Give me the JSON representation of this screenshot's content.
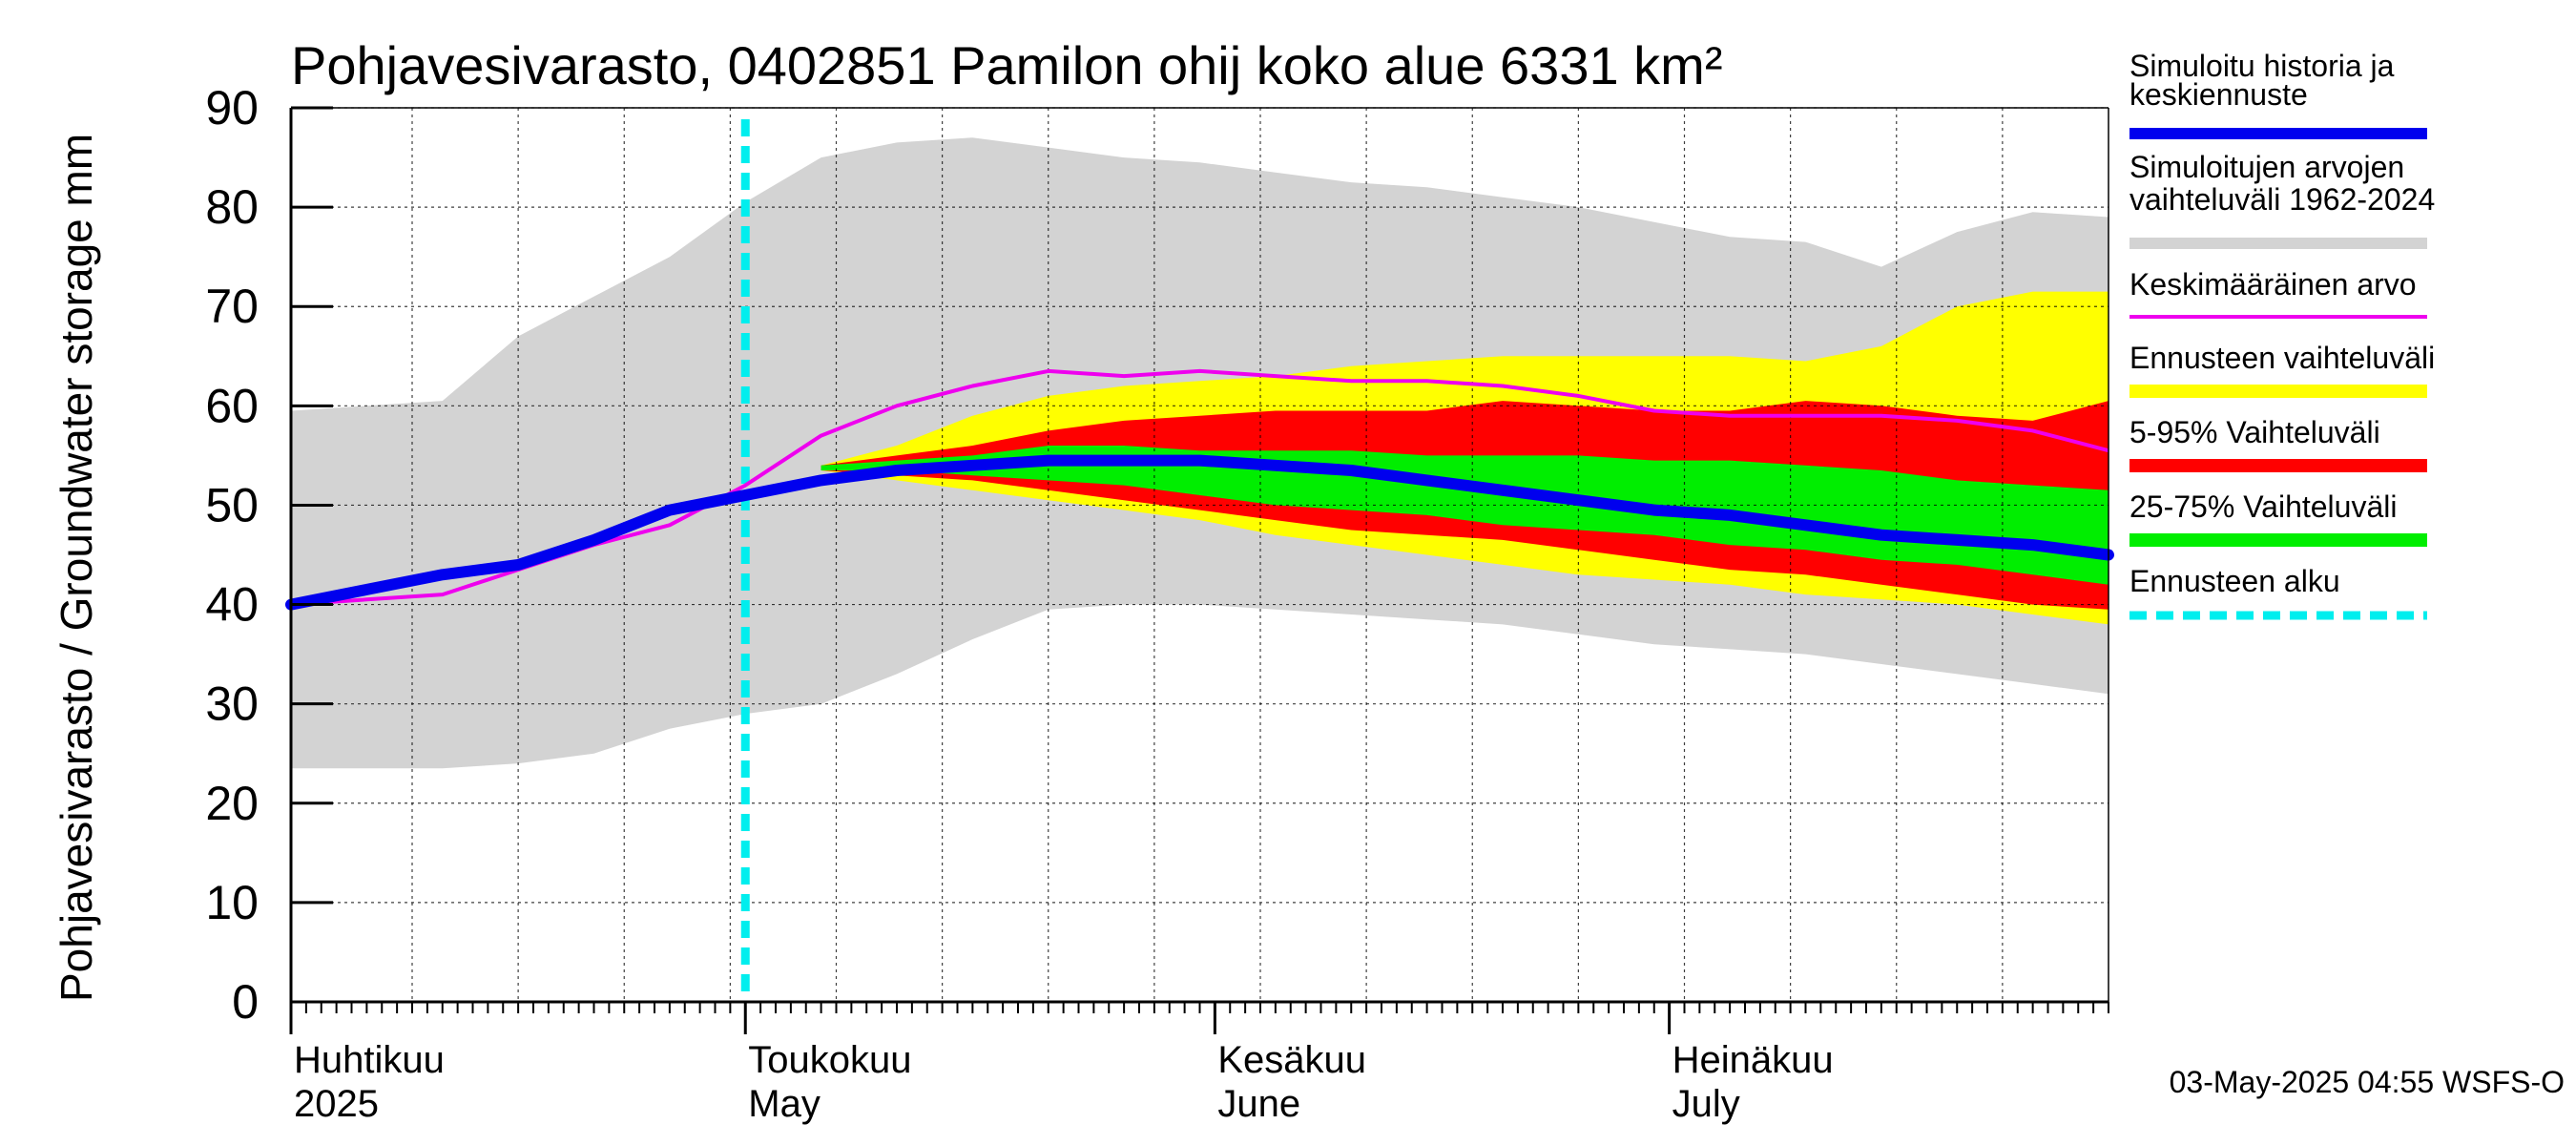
{
  "chart_data": {
    "type": "area",
    "title": "Pohjavesivarasto, 0402851 Pamilon ohij koko alue 6331 km²",
    "ylabel": "Pohjavesivarasto / Groundwater storage   mm",
    "ylim": [
      0,
      90
    ],
    "yticks": [
      0,
      10,
      20,
      30,
      40,
      50,
      60,
      70,
      80,
      90
    ],
    "xlim": [
      0,
      120
    ],
    "x_axis_note": "x in days since 31-Mar-2025",
    "months": [
      {
        "fi": "Huhtikuu",
        "en": "2025",
        "day": 1
      },
      {
        "fi": "Toukokuu",
        "en": "May",
        "day": 31
      },
      {
        "fi": "Kesäkuu",
        "en": "June",
        "day": 62
      },
      {
        "fi": "Heinäkuu",
        "en": "July",
        "day": 92
      }
    ],
    "forecast_start_day": 30,
    "x": [
      0,
      5,
      10,
      15,
      20,
      25,
      30,
      35,
      40,
      45,
      50,
      55,
      60,
      65,
      70,
      75,
      80,
      85,
      90,
      95,
      100,
      105,
      110,
      115,
      120
    ],
    "series": [
      {
        "name": "range_1962_2024_lower",
        "values": [
          23.5,
          23.5,
          23.5,
          24,
          25,
          27.5,
          29,
          30,
          33,
          36.5,
          39.5,
          40,
          40,
          39.5,
          39,
          38.5,
          38,
          37,
          36,
          35.5,
          35,
          34,
          33,
          32,
          31
        ]
      },
      {
        "name": "range_1962_2024_upper",
        "values": [
          59.5,
          60,
          60.5,
          67,
          71,
          75,
          80.5,
          85,
          86.5,
          87,
          86,
          85,
          84.5,
          83.5,
          82.5,
          82,
          81,
          80,
          78.5,
          77,
          76.5,
          74,
          77.5,
          79.5,
          79
        ]
      },
      {
        "name": "forecast_range_lower",
        "values": [
          null,
          null,
          null,
          null,
          null,
          null,
          null,
          53.5,
          52.5,
          51.5,
          50.5,
          49.5,
          48.5,
          47,
          46,
          45,
          44,
          43,
          42.5,
          42,
          41,
          40.5,
          40,
          39,
          38
        ]
      },
      {
        "name": "forecast_range_upper",
        "values": [
          null,
          null,
          null,
          null,
          null,
          null,
          null,
          54,
          56,
          59,
          61,
          62,
          62.5,
          63,
          64,
          64.5,
          65,
          65,
          65,
          65,
          64.5,
          66,
          70,
          71.5,
          71.5
        ]
      },
      {
        "name": "p5_95_lower",
        "values": [
          null,
          null,
          null,
          null,
          null,
          null,
          null,
          53.5,
          53,
          52.5,
          51.5,
          50.5,
          49.5,
          48.5,
          47.5,
          47,
          46.5,
          45.5,
          44.5,
          43.5,
          43,
          42,
          41,
          40,
          39.5
        ]
      },
      {
        "name": "p5_95_upper",
        "values": [
          null,
          null,
          null,
          null,
          null,
          null,
          null,
          54,
          55,
          56,
          57.5,
          58.5,
          59,
          59.5,
          59.5,
          59.5,
          60.5,
          60,
          59.5,
          59.5,
          60.5,
          60,
          59,
          58.5,
          60.5
        ]
      },
      {
        "name": "p25_75_lower",
        "values": [
          null,
          null,
          null,
          null,
          null,
          null,
          null,
          53.5,
          53.5,
          53,
          52.5,
          52,
          51,
          50,
          49.5,
          49,
          48,
          47.5,
          47,
          46,
          45.5,
          44.5,
          44,
          43,
          42
        ]
      },
      {
        "name": "p25_75_upper",
        "values": [
          null,
          null,
          null,
          null,
          null,
          null,
          null,
          54,
          54.5,
          55,
          56,
          56,
          55.5,
          55.5,
          55.5,
          55,
          55,
          55,
          54.5,
          54.5,
          54,
          53.5,
          52.5,
          52,
          51.5
        ]
      },
      {
        "name": "Simuloitu historia ja keskiennuste",
        "values": [
          40,
          41.5,
          43,
          44,
          46.5,
          49.5,
          51,
          52.5,
          53.5,
          54,
          54.5,
          54.5,
          54.5,
          54,
          53.5,
          52.5,
          51.5,
          50.5,
          49.5,
          49,
          48,
          47,
          46.5,
          46,
          45
        ]
      },
      {
        "name": "Keskimääräinen arvo",
        "values": [
          40,
          40.5,
          41,
          43.5,
          46,
          48,
          52,
          57,
          60,
          62,
          63.5,
          63,
          63.5,
          63,
          62.5,
          62.5,
          62,
          61,
          59.5,
          59,
          59,
          59,
          58.5,
          57.5,
          55.5
        ]
      }
    ],
    "legend": [
      {
        "label": "Simuloitu historia ja\nkeskiennuste",
        "color": "#0000ee"
      },
      {
        "label": "Simuloitujen arvojen\nvaihteluväli 1962-2024",
        "color": "#d3d3d3"
      },
      {
        "label": "Keskimääräinen arvo",
        "color": "#ee00ee"
      },
      {
        "label": "Ennusteen vaihteluväli",
        "color": "#ffff00"
      },
      {
        "label": "5-95% Vaihteluväli",
        "color": "#ff0000"
      },
      {
        "label": "25-75% Vaihteluväli",
        "color": "#00ee00"
      },
      {
        "label": "Ennusteen alku",
        "color": "#00eeee"
      }
    ],
    "footer": "03-May-2025 04:55 WSFS-O",
    "colors": {
      "grey": "#d3d3d3",
      "yellow": "#ffff00",
      "red": "#ff0000",
      "green": "#00ee00",
      "blue": "#0000ee",
      "magenta": "#ee00ee",
      "cyan": "#00eeee"
    }
  }
}
